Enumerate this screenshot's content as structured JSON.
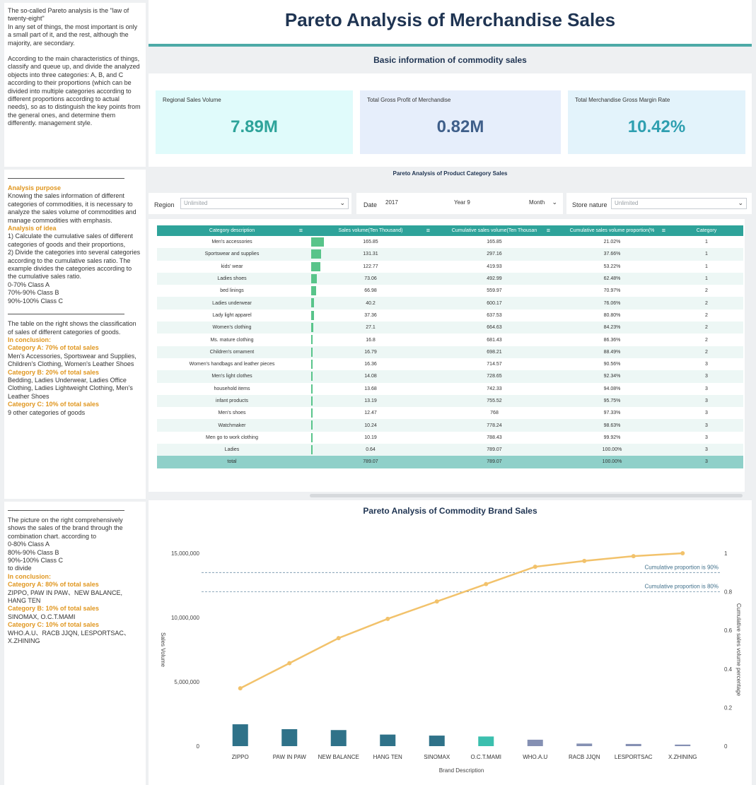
{
  "left": {
    "intro": [
      "The so-called Pareto analysis is the \"law of twenty-eight\"",
      "In any set of things, the most important is only a small part of it, and the rest, although the majority, are secondary.",
      "",
      "According to the main characteristics of things, classify and queue up, and divide the analyzed objects into three categories: A, B, and C according to their proportions (which can be divided into multiple categories according to different proportions according to actual needs), so as to distinguish the key points from the general ones, and determine them differently. management style."
    ],
    "purpose_title": "Analysis purpose",
    "purpose_text": "Knowing the sales information of different categories of commodities, it is necessary to analyze the sales volume of commodities and manage commodities with emphasis.",
    "idea_title": "Analysis of idea",
    "idea_lines": [
      "1) Calculate the cumulative sales of different categories of goods and their proportions,",
      "2) Divide the categories into several categories according to the cumulative sales ratio. The example divides the categories according to the cumulative sales ratio.",
      "0-70% Class A",
      "70%-90% Class B",
      "90%-100% Class C"
    ],
    "table_note": "The table on the right shows the classification of sales of different categories of goods.",
    "conclusion1_title": "In conclusion:",
    "conclusion1": [
      {
        "head": "Category A: 70% of total sales",
        "text": "Men's Accessories, Sportswear and Supplies, Children's Clothing, Women's Leather Shoes"
      },
      {
        "head": "Category B: 20% of total sales",
        "text": "Bedding, Ladies Underwear, Ladies Office Clothing, Ladies Lightweight Clothing, Men's Leather Shoes"
      },
      {
        "head": "Category C: 10% of total sales",
        "text": "9 other categories of goods"
      }
    ],
    "chart_note": [
      "The picture on the right comprehensively shows the sales of the brand through the combination chart. according to",
      "0-80% Class A",
      "80%-90% Class B",
      "90%-100% Class C",
      "to divide"
    ],
    "conclusion2_title": "In conclusion:",
    "conclusion2": [
      {
        "head": "Category A: 80% of total sales",
        "text": "ZIPPO, PAW IN PAW、NEW BALANCE, HANG TEN"
      },
      {
        "head": "Category B: 10% of total sales",
        "text": "SINOMAX, O.C.T.MAMI"
      },
      {
        "head": "Category C: 10% of total sales",
        "text": "WHO.A.U、RACB JJQN, LESPORTSAC、X.ZHINING"
      }
    ]
  },
  "header": {
    "title": "Pareto Analysis of Merchandise Sales",
    "basic_title": "Basic information of commodity sales"
  },
  "kpis": [
    {
      "label": "Regional Sales Volume",
      "value": "7.89M",
      "bg": "#e0fbfb",
      "color": "#2ea39a"
    },
    {
      "label": "Total Gross Profit of Merchandise",
      "value": "0.82M",
      "bg": "#e6eefb",
      "color": "#3f5f8a"
    },
    {
      "label": "Total Merchandise Gross Margin Rate",
      "value": "10.42%",
      "bg": "#e3f3fb",
      "color": "#2e9fb0"
    }
  ],
  "category_section_title": "Pareto Analysis of Product Category Sales",
  "filters": {
    "region_label": "Region",
    "region_value": "Unlimited",
    "date_label": "Date",
    "date_value": "2017",
    "year_value": "Year 9",
    "month_value": "Month",
    "store_label": "Store nature",
    "store_value": "Unlimited"
  },
  "table": {
    "headers": [
      "Category description",
      "Sales volume(Ten Thousand)",
      "Cumulative sales volume(Ten Thousan",
      "Cumulative sales volume proportion(%",
      "Category"
    ],
    "rows": [
      {
        "desc": "Men's accessories",
        "sales": "165.85",
        "cum": "165.85",
        "prop": "21.02%",
        "cat": "1",
        "v": 165.85
      },
      {
        "desc": "Sportswear and supplies",
        "sales": "131.31",
        "cum": "297.16",
        "prop": "37.66%",
        "cat": "1",
        "v": 131.31
      },
      {
        "desc": "kids' wear",
        "sales": "122.77",
        "cum": "419.93",
        "prop": "53.22%",
        "cat": "1",
        "v": 122.77
      },
      {
        "desc": "Ladies shoes",
        "sales": "73.06",
        "cum": "492.99",
        "prop": "62.48%",
        "cat": "1",
        "v": 73.06
      },
      {
        "desc": "bed linings",
        "sales": "66.98",
        "cum": "559.97",
        "prop": "70.97%",
        "cat": "2",
        "v": 66.98
      },
      {
        "desc": "Ladies underwear",
        "sales": "40.2",
        "cum": "600.17",
        "prop": "76.06%",
        "cat": "2",
        "v": 40.2
      },
      {
        "desc": "Lady light apparel",
        "sales": "37.36",
        "cum": "637.53",
        "prop": "80.80%",
        "cat": "2",
        "v": 37.36
      },
      {
        "desc": "Women's clothing",
        "sales": "27.1",
        "cum": "664.63",
        "prop": "84.23%",
        "cat": "2",
        "v": 27.1
      },
      {
        "desc": "Ms. mature clothing",
        "sales": "16.8",
        "cum": "681.43",
        "prop": "86.36%",
        "cat": "2",
        "v": 16.8
      },
      {
        "desc": "Children's ornament",
        "sales": "16.79",
        "cum": "698.21",
        "prop": "88.49%",
        "cat": "2",
        "v": 16.79
      },
      {
        "desc": "Women's handbags and leather pieces",
        "sales": "16.36",
        "cum": "714.57",
        "prop": "90.56%",
        "cat": "3",
        "v": 16.36
      },
      {
        "desc": "Men's light clothes",
        "sales": "14.08",
        "cum": "728.65",
        "prop": "92.34%",
        "cat": "3",
        "v": 14.08
      },
      {
        "desc": "household items",
        "sales": "13.68",
        "cum": "742.33",
        "prop": "94.08%",
        "cat": "3",
        "v": 13.68
      },
      {
        "desc": "infant products",
        "sales": "13.19",
        "cum": "755.52",
        "prop": "95.75%",
        "cat": "3",
        "v": 13.19
      },
      {
        "desc": "Men's shoes",
        "sales": "12.47",
        "cum": "768",
        "prop": "97.33%",
        "cat": "3",
        "v": 12.47
      },
      {
        "desc": "Watchmaker",
        "sales": "10.24",
        "cum": "778.24",
        "prop": "98.63%",
        "cat": "3",
        "v": 10.24
      },
      {
        "desc": "Men go to work clothing",
        "sales": "10.19",
        "cum": "788.43",
        "prop": "99.92%",
        "cat": "3",
        "v": 10.19
      },
      {
        "desc": "Ladies",
        "sales": "0.64",
        "cum": "789.07",
        "prop": "100.00%",
        "cat": "3",
        "v": 0.64
      }
    ],
    "total": {
      "desc": "total",
      "sales": "789.07",
      "cum": "789.07",
      "prop": "100.00%",
      "cat": "3"
    }
  },
  "brand_section_title": "Pareto Analysis of Commodity Brand Sales",
  "chart_data": {
    "type": "bar",
    "title": "Pareto Analysis of Commodity Brand Sales",
    "xlabel": "Brand Description",
    "ylabel": "Sales Volume",
    "y2label": "Cumulative sales volume percentage",
    "categories": [
      "ZIPPO",
      "PAW IN PAW",
      "NEW BALANCE",
      "HANG TEN",
      "SINOMAX",
      "O.C.T.MAMI",
      "WHO.A.U",
      "RACB JJQN",
      "LESPORTSAC",
      "X.ZHINING"
    ],
    "ylim": [
      0,
      15000000
    ],
    "y_ticks": [
      "15,000,000",
      "10,000,000",
      "5,000,000",
      "0"
    ],
    "y_tick_values": [
      15000000,
      10000000,
      5000000,
      0
    ],
    "y2lim": [
      0,
      1
    ],
    "y2_ticks": [
      "1",
      "0.8",
      "0.6",
      "0.4",
      "0.2",
      "0"
    ],
    "y2_tick_values": [
      1,
      0.8,
      0.6,
      0.4,
      0.2,
      0
    ],
    "bar_colors": [
      "#2f7289",
      "#2f7289",
      "#2f7289",
      "#2f7289",
      "#2f7289",
      "#3bbfae",
      "#8590b3",
      "#8590b3",
      "#8590b3",
      "#8590b3"
    ],
    "line_color": "#f2c26b",
    "series": [
      {
        "type": "bar",
        "values": [
          1700000,
          1320000,
          1250000,
          900000,
          820000,
          750000,
          500000,
          200000,
          170000,
          120000
        ]
      },
      {
        "type": "line",
        "values": [
          0.3,
          0.43,
          0.56,
          0.66,
          0.75,
          0.84,
          0.93,
          0.96,
          0.985,
          1.0
        ]
      }
    ],
    "reference_lines": [
      {
        "value": 0.9,
        "label": "Cumulative proportion is 90%"
      },
      {
        "value": 0.8,
        "label": "Cumulative proportion is 80%"
      }
    ],
    "grid": false
  }
}
